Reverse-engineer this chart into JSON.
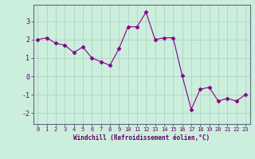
{
  "x": [
    0,
    1,
    2,
    3,
    4,
    5,
    6,
    7,
    8,
    9,
    10,
    11,
    12,
    13,
    14,
    15,
    16,
    17,
    18,
    19,
    20,
    21,
    22,
    23
  ],
  "y": [
    2.0,
    2.1,
    1.8,
    1.7,
    1.3,
    1.6,
    1.0,
    0.8,
    0.6,
    1.5,
    2.7,
    2.7,
    3.5,
    2.0,
    2.1,
    2.1,
    0.05,
    -1.8,
    -0.7,
    -0.6,
    -1.35,
    -1.2,
    -1.35,
    -1.0
  ],
  "line_color": "#880088",
  "marker": "D",
  "marker_size": 2.5,
  "bg_color": "#cceedd",
  "plot_bg_color": "#cceedd",
  "grid_color": "#aaccbb",
  "xlabel": "Windchill (Refroidissement éolien,°C)",
  "xlabel_color": "#660066",
  "tick_color": "#660066",
  "spine_color": "#666688",
  "ylim": [
    -2.6,
    3.9
  ],
  "xlim": [
    -0.5,
    23.5
  ],
  "yticks": [
    -2,
    -1,
    0,
    1,
    2,
    3
  ],
  "xticks": [
    0,
    1,
    2,
    3,
    4,
    5,
    6,
    7,
    8,
    9,
    10,
    11,
    12,
    13,
    14,
    15,
    16,
    17,
    18,
    19,
    20,
    21,
    22,
    23
  ]
}
